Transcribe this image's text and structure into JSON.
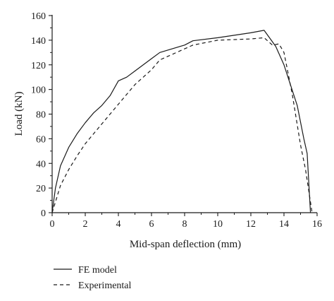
{
  "chart_data": {
    "type": "line",
    "xlabel": "Mid-span deflection (mm)",
    "ylabel": "Load (kN)",
    "xlim": [
      0,
      16
    ],
    "ylim": [
      0,
      160
    ],
    "xticks": [
      0,
      2,
      4,
      6,
      8,
      10,
      12,
      14,
      16
    ],
    "yticks": [
      0,
      20,
      40,
      60,
      80,
      100,
      120,
      140,
      160
    ],
    "grid": false,
    "legend": "bottom-left, below plot",
    "series": [
      {
        "name": "FE model",
        "style": "solid",
        "color": "#1a1a1a",
        "points": [
          [
            0,
            0
          ],
          [
            0.2,
            20
          ],
          [
            0.5,
            38
          ],
          [
            1.0,
            53
          ],
          [
            1.5,
            64
          ],
          [
            2.0,
            73
          ],
          [
            2.5,
            81
          ],
          [
            3.0,
            87
          ],
          [
            3.5,
            95
          ],
          [
            4.0,
            107
          ],
          [
            4.5,
            110
          ],
          [
            5.0,
            115
          ],
          [
            6.0,
            125
          ],
          [
            6.5,
            130
          ],
          [
            8.0,
            136
          ],
          [
            8.5,
            139.5
          ],
          [
            10.0,
            142
          ],
          [
            12.0,
            146
          ],
          [
            12.8,
            148
          ],
          [
            13.5,
            135
          ],
          [
            14.0,
            120
          ],
          [
            14.8,
            87
          ],
          [
            15.2,
            60
          ],
          [
            15.4,
            48
          ],
          [
            15.6,
            0
          ]
        ]
      },
      {
        "name": "Experimental",
        "style": "dashed",
        "color": "#1a1a1a",
        "points": [
          [
            0,
            0
          ],
          [
            0.5,
            22
          ],
          [
            1.0,
            35
          ],
          [
            1.5,
            46
          ],
          [
            2.0,
            56
          ],
          [
            3.0,
            72
          ],
          [
            4.0,
            88
          ],
          [
            5.0,
            104
          ],
          [
            6.0,
            116
          ],
          [
            6.5,
            124
          ],
          [
            8.0,
            133
          ],
          [
            8.5,
            136
          ],
          [
            10.0,
            140
          ],
          [
            12.0,
            141
          ],
          [
            12.8,
            142
          ],
          [
            13.3,
            136
          ],
          [
            13.7,
            137
          ],
          [
            14.0,
            130
          ],
          [
            14.5,
            96
          ],
          [
            15.0,
            55
          ],
          [
            15.3,
            35
          ],
          [
            15.7,
            0
          ]
        ]
      }
    ]
  }
}
